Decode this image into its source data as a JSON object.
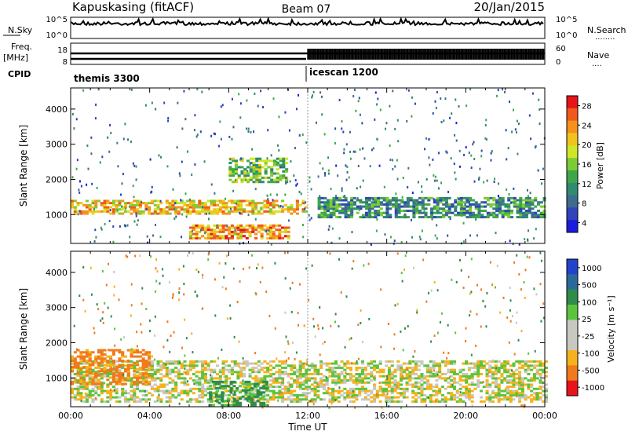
{
  "header": {
    "station": "Kapuskasing (fitACF)",
    "beam": "Beam 07",
    "date": "20/Jan/2015"
  },
  "side_labels": {
    "nsky": "N.Sky",
    "nsearch": "N.Search",
    "nsearch_dots": "........",
    "freq": "Freq.",
    "mhz": "[MHz]",
    "nave": "Nave",
    "nave_dots": "....",
    "cpid": "CPID"
  },
  "top_panel_ticks": {
    "nsky_left": [
      "10^5",
      "10^0"
    ],
    "nsky_right": [
      "10^5",
      "10^0"
    ],
    "freq_left": [
      "18",
      "8"
    ],
    "freq_right": [
      "60",
      "0"
    ]
  },
  "cpid_segments": [
    {
      "label": "themis 3300",
      "start_hour": 0
    },
    {
      "label": "icescan 1200",
      "start_hour": 12
    }
  ],
  "chart_data": [
    {
      "type": "heatmap",
      "name": "power",
      "ylabel": "Slant Range [km]",
      "ylim": [
        180,
        4600
      ],
      "yticks": [
        1000,
        2000,
        3000,
        4000
      ],
      "xlim": [
        0,
        24
      ],
      "colorbar": {
        "label": "Power [dB]",
        "ticks": [
          "28",
          "24",
          "20",
          "16",
          "12",
          "8",
          "4"
        ],
        "colors": [
          "#e8141a",
          "#f05a1c",
          "#f6911e",
          "#f2c31c",
          "#cfe626",
          "#7ccc35",
          "#3fa74a",
          "#2f8c6e",
          "#3d6c8f",
          "#2f44b8",
          "#1c1ce0"
        ]
      },
      "features": [
        {
          "desc": "E-region echoes",
          "hours": [
            0,
            12
          ],
          "range_km": [
            1000,
            1400
          ],
          "level_db": 20
        },
        {
          "desc": "near-range scatter",
          "hours": [
            6,
            11
          ],
          "range_km": [
            300,
            700
          ],
          "level_db": 22
        },
        {
          "desc": "slant band",
          "hours": [
            8,
            11
          ],
          "range_km": [
            1900,
            2600
          ],
          "level_db": 14
        },
        {
          "desc": "band after 12:00",
          "hours": [
            12.5,
            24
          ],
          "range_km": [
            900,
            1500
          ],
          "level_db": 10
        }
      ]
    },
    {
      "type": "heatmap",
      "name": "velocity",
      "ylabel": "Slant Range [km]",
      "ylim": [
        180,
        4600
      ],
      "yticks": [
        1000,
        2000,
        3000,
        4000
      ],
      "xlabel": "Time UT",
      "xticks": [
        "00:00",
        "04:00",
        "08:00",
        "12:00",
        "16:00",
        "20:00",
        "00:00"
      ],
      "colorbar": {
        "label": "Velocity [m s⁻¹]",
        "ticks": [
          "1000",
          "500",
          "100",
          "25",
          "-25",
          "-100",
          "-500",
          "-1000"
        ],
        "colors": [
          "#2244cc",
          "#2a6a9a",
          "#2f8c4a",
          "#5cc43c",
          "#c8c8c0",
          "#c8c8c0",
          "#f6b21c",
          "#f07a1c",
          "#e8141a"
        ]
      },
      "features": [
        {
          "desc": "ground scatter (grey)",
          "hours": [
            0,
            24
          ],
          "range_km": [
            300,
            1500
          ],
          "velocity": 0
        },
        {
          "desc": "negative flows",
          "hours": [
            0,
            4
          ],
          "range_km": [
            800,
            1800
          ],
          "velocity": -150
        },
        {
          "desc": "positive flows",
          "hours": [
            7,
            10
          ],
          "range_km": [
            200,
            900
          ],
          "velocity": 150
        }
      ]
    }
  ]
}
